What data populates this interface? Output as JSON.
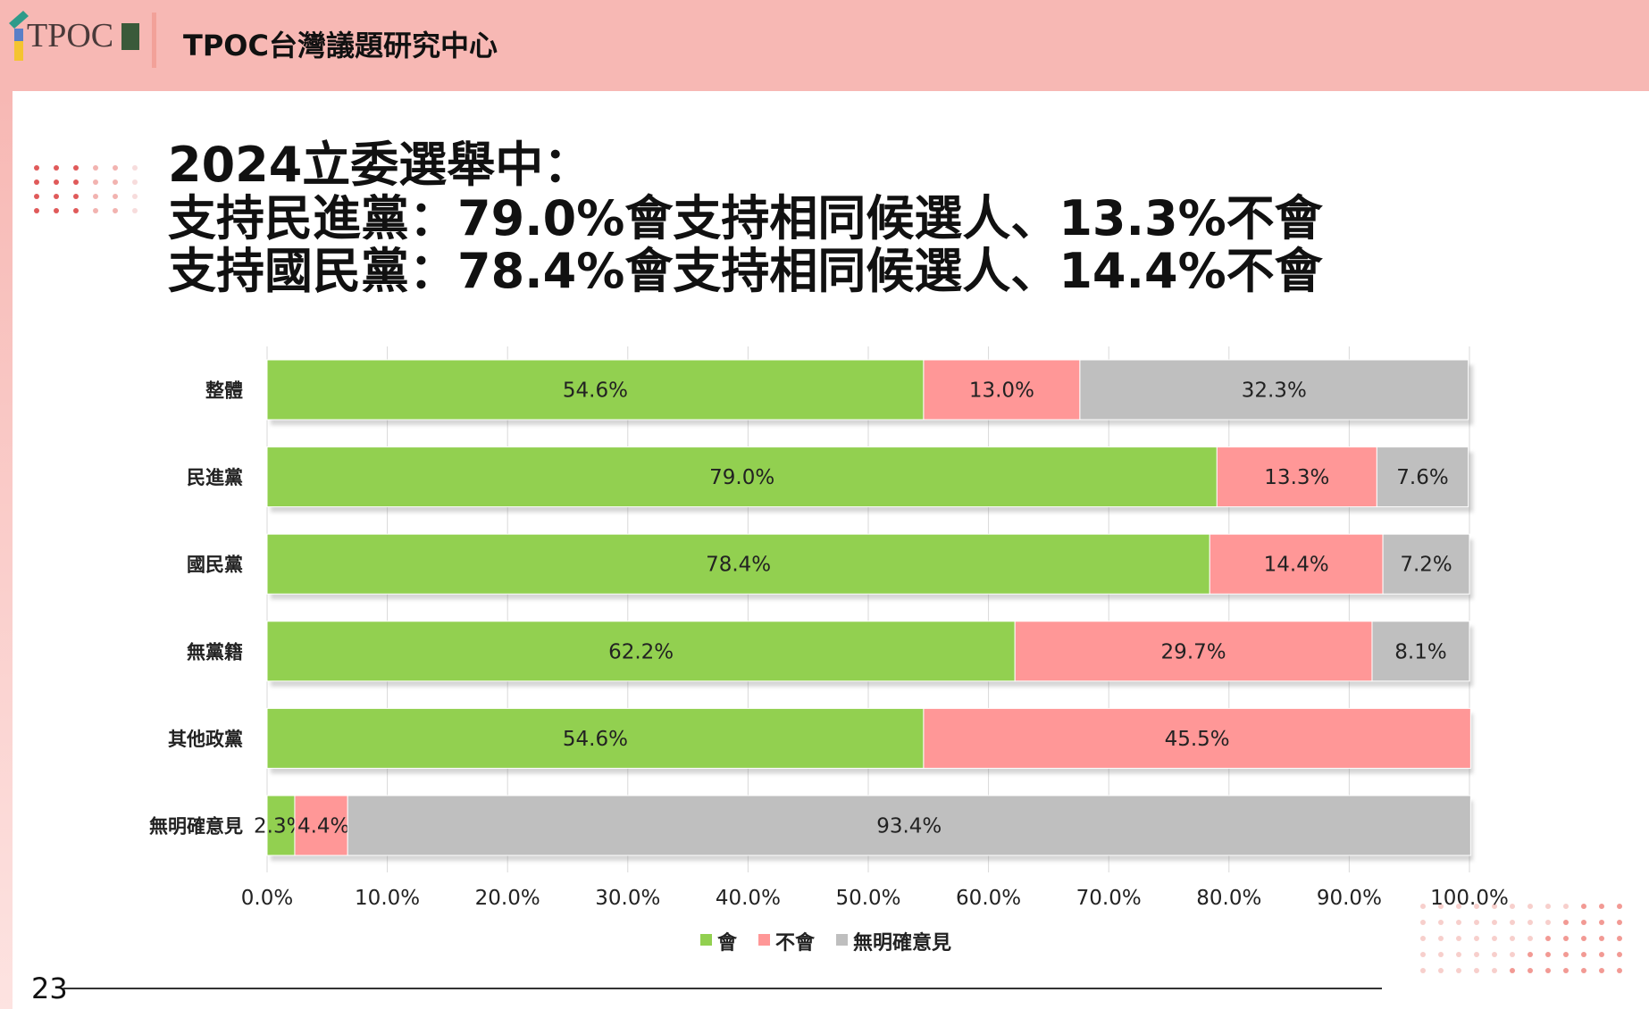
{
  "header": {
    "logo_text": "TPOC",
    "org_name": "TPOC台灣議題研究中心"
  },
  "title": {
    "lines": [
      "2024立委選舉中：",
      "支持民進黨：79.0%會支持相同候選人、13.3%不會",
      "支持國民黨：78.4%會支持相同候選人、14.4%不會"
    ]
  },
  "page_number": "23",
  "chart_data": {
    "type": "bar",
    "orientation": "horizontal",
    "stacked": true,
    "categories": [
      "整體",
      "民進黨",
      "國民黨",
      "無黨籍",
      "其他政黨",
      "無明確意見"
    ],
    "series": [
      {
        "name": "會",
        "color": "#92d050",
        "values": [
          54.6,
          79.0,
          78.4,
          62.2,
          54.6,
          2.3
        ]
      },
      {
        "name": "不會",
        "color": "#ff9797",
        "values": [
          13.0,
          13.3,
          14.4,
          29.7,
          45.5,
          4.4
        ]
      },
      {
        "name": "無明確意見",
        "color": "#bfbfbf",
        "values": [
          32.3,
          7.6,
          7.2,
          8.1,
          0,
          93.4
        ]
      }
    ],
    "data_labels": [
      [
        "54.6%",
        "13.0%",
        "32.3%"
      ],
      [
        "79.0%",
        "13.3%",
        "7.6%"
      ],
      [
        "78.4%",
        "14.4%",
        "7.2%"
      ],
      [
        "62.2%",
        "29.7%",
        "8.1%"
      ],
      [
        "54.6%",
        "45.5%",
        ""
      ],
      [
        "2.3%",
        "4.4%",
        "93.4%"
      ]
    ],
    "xlim": [
      0,
      100
    ],
    "x_ticks": [
      "0.0%",
      "10.0%",
      "20.0%",
      "30.0%",
      "40.0%",
      "50.0%",
      "60.0%",
      "70.0%",
      "80.0%",
      "90.0%",
      "100.0%"
    ],
    "grid": "vertical",
    "legend": "bottom"
  }
}
